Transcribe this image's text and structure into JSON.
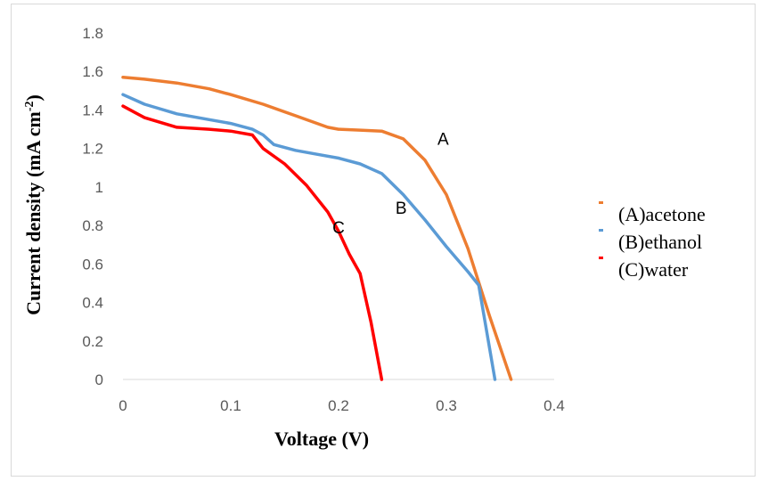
{
  "chart_data": {
    "type": "line",
    "xlabel": "Voltage (V)",
    "ylabel": "Current density (mA cm",
    "ylabel_sup": "-2",
    "ylabel_close": ")",
    "xlim": [
      0,
      0.4
    ],
    "ylim": [
      0,
      1.8
    ],
    "x_ticks": [
      "0",
      "0.1",
      "0.2",
      "0.3",
      "0.4"
    ],
    "y_ticks": [
      "0",
      "0.2",
      "0.4",
      "0.6",
      "0.8",
      "1",
      "1.2",
      "1.4",
      "1.6",
      "1.8"
    ],
    "grid": false,
    "legend_position": "right",
    "series": [
      {
        "name": "(A)acetone",
        "label": "A",
        "color": "#ed7d31",
        "x": [
          0,
          0.02,
          0.05,
          0.08,
          0.1,
          0.13,
          0.16,
          0.19,
          0.2,
          0.22,
          0.24,
          0.26,
          0.28,
          0.3,
          0.32,
          0.34,
          0.36
        ],
        "y": [
          1.57,
          1.56,
          1.54,
          1.51,
          1.48,
          1.43,
          1.37,
          1.31,
          1.3,
          1.295,
          1.29,
          1.25,
          1.14,
          0.96,
          0.68,
          0.33,
          0.0
        ]
      },
      {
        "name": "(B)ethanol",
        "label": "B",
        "color": "#5b9bd5",
        "x": [
          0,
          0.02,
          0.05,
          0.08,
          0.1,
          0.12,
          0.13,
          0.14,
          0.16,
          0.18,
          0.2,
          0.22,
          0.24,
          0.26,
          0.28,
          0.3,
          0.32,
          0.33,
          0.345
        ],
        "y": [
          1.48,
          1.43,
          1.38,
          1.35,
          1.33,
          1.3,
          1.27,
          1.22,
          1.19,
          1.17,
          1.15,
          1.12,
          1.07,
          0.96,
          0.83,
          0.69,
          0.56,
          0.49,
          0.0
        ]
      },
      {
        "name": "(C)water",
        "label": "C",
        "color": "#ff0000",
        "x": [
          0,
          0.02,
          0.05,
          0.08,
          0.1,
          0.12,
          0.13,
          0.15,
          0.17,
          0.19,
          0.2,
          0.21,
          0.22,
          0.23,
          0.24
        ],
        "y": [
          1.42,
          1.36,
          1.31,
          1.3,
          1.29,
          1.27,
          1.2,
          1.12,
          1.01,
          0.87,
          0.77,
          0.65,
          0.55,
          0.3,
          0.0
        ]
      }
    ],
    "annotations": [
      {
        "text": "A",
        "x": 0.297,
        "y": 1.22
      },
      {
        "text": "B",
        "x": 0.258,
        "y": 0.86
      },
      {
        "text": "C",
        "x": 0.2,
        "y": 0.76
      }
    ]
  }
}
